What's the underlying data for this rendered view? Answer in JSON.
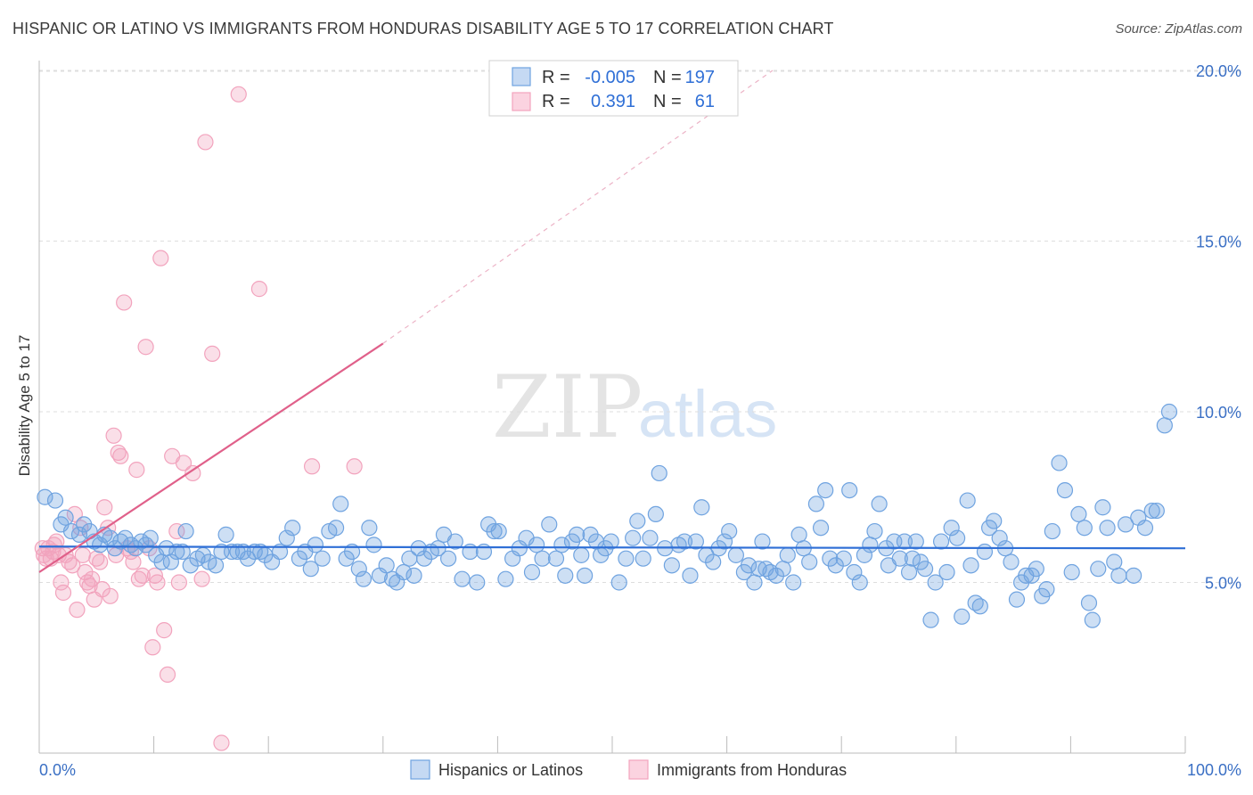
{
  "header": {
    "title": "HISPANIC OR LATINO VS IMMIGRANTS FROM HONDURAS DISABILITY AGE 5 TO 17 CORRELATION CHART",
    "source": "Source: ZipAtlas.com"
  },
  "watermark": {
    "zip": "ZIP",
    "atlas": "atlas"
  },
  "colors": {
    "blue": "#6fa3e0",
    "blue_line": "#2f6fd6",
    "pink": "#f2a3bd",
    "pink_line": "#e0608a",
    "axis_text": "#3a6fc4"
  },
  "chart_data": {
    "type": "scatter",
    "title": "HISPANIC OR LATINO VS IMMIGRANTS FROM HONDURAS DISABILITY AGE 5 TO 17 CORRELATION CHART",
    "ylabel": "Disability Age 5 to 17",
    "xlabel": "",
    "xlim": [
      0,
      100
    ],
    "ylim": [
      0,
      20.5
    ],
    "y_ticks": [
      5.0,
      10.0,
      15.0,
      20.0
    ],
    "y_tick_labels": [
      "5.0%",
      "10.0%",
      "15.0%",
      "20.0%"
    ],
    "x_tick_labels": [
      "0.0%",
      "100.0%"
    ],
    "grid": true,
    "legend_position": "top-center",
    "stats": [
      {
        "r_label": "R =",
        "r": "-0.005",
        "n_label": "N =",
        "n": "197"
      },
      {
        "r_label": "R =",
        "r": "0.391",
        "n_label": "N =",
        "n": "61"
      }
    ],
    "series": [
      {
        "name": "Hispanics or Latinos",
        "color": "#6fa3e0",
        "trend": {
          "x": [
            0,
            100
          ],
          "y": [
            6.05,
            6.0
          ]
        },
        "points": [
          [
            0.5,
            7.5
          ],
          [
            1.4,
            7.4
          ],
          [
            1.9,
            6.7
          ],
          [
            2.3,
            6.9
          ],
          [
            2.8,
            6.5
          ],
          [
            3.5,
            6.4
          ],
          [
            3.9,
            6.7
          ],
          [
            4.4,
            6.5
          ],
          [
            4.8,
            6.2
          ],
          [
            5.3,
            6.1
          ],
          [
            5.7,
            6.4
          ],
          [
            6.2,
            6.3
          ],
          [
            6.6,
            6.0
          ],
          [
            7.1,
            6.2
          ],
          [
            7.5,
            6.3
          ],
          [
            8.0,
            6.1
          ],
          [
            8.4,
            6.0
          ],
          [
            8.9,
            6.2
          ],
          [
            9.3,
            6.1
          ],
          [
            9.7,
            6.3
          ],
          [
            10.2,
            5.8
          ],
          [
            10.7,
            5.6
          ],
          [
            11.1,
            6.0
          ],
          [
            11.5,
            5.6
          ],
          [
            12.0,
            5.9
          ],
          [
            12.5,
            5.9
          ],
          [
            12.8,
            6.5
          ],
          [
            13.2,
            5.5
          ],
          [
            13.8,
            5.7
          ],
          [
            14.3,
            5.8
          ],
          [
            14.8,
            5.6
          ],
          [
            15.4,
            5.5
          ],
          [
            15.9,
            5.9
          ],
          [
            16.3,
            6.4
          ],
          [
            16.8,
            5.9
          ],
          [
            17.3,
            5.9
          ],
          [
            17.8,
            5.9
          ],
          [
            18.2,
            5.7
          ],
          [
            18.8,
            5.9
          ],
          [
            19.3,
            5.9
          ],
          [
            19.7,
            5.8
          ],
          [
            20.3,
            5.6
          ],
          [
            21.0,
            5.9
          ],
          [
            21.6,
            6.3
          ],
          [
            22.1,
            6.6
          ],
          [
            22.7,
            5.7
          ],
          [
            23.2,
            5.9
          ],
          [
            23.7,
            5.4
          ],
          [
            24.1,
            6.1
          ],
          [
            24.7,
            5.7
          ],
          [
            25.3,
            6.5
          ],
          [
            25.9,
            6.6
          ],
          [
            26.3,
            7.3
          ],
          [
            26.8,
            5.7
          ],
          [
            27.3,
            5.9
          ],
          [
            27.9,
            5.4
          ],
          [
            28.3,
            5.1
          ],
          [
            28.8,
            6.6
          ],
          [
            29.2,
            6.1
          ],
          [
            29.7,
            5.2
          ],
          [
            30.3,
            5.5
          ],
          [
            30.8,
            5.1
          ],
          [
            31.2,
            5.0
          ],
          [
            31.8,
            5.3
          ],
          [
            32.3,
            5.7
          ],
          [
            32.7,
            5.2
          ],
          [
            33.1,
            6.0
          ],
          [
            33.6,
            5.7
          ],
          [
            34.2,
            5.9
          ],
          [
            34.8,
            6.0
          ],
          [
            35.3,
            6.4
          ],
          [
            35.7,
            5.7
          ],
          [
            36.3,
            6.2
          ],
          [
            36.9,
            5.1
          ],
          [
            37.6,
            5.9
          ],
          [
            38.2,
            5.0
          ],
          [
            38.8,
            5.9
          ],
          [
            39.2,
            6.7
          ],
          [
            39.7,
            6.5
          ],
          [
            40.1,
            6.5
          ],
          [
            40.7,
            5.1
          ],
          [
            41.3,
            5.7
          ],
          [
            41.9,
            6.0
          ],
          [
            42.5,
            6.3
          ],
          [
            43.0,
            5.3
          ],
          [
            43.4,
            6.1
          ],
          [
            43.9,
            5.7
          ],
          [
            44.5,
            6.7
          ],
          [
            45.1,
            5.7
          ],
          [
            45.6,
            6.1
          ],
          [
            45.9,
            5.2
          ],
          [
            46.5,
            6.2
          ],
          [
            46.9,
            6.4
          ],
          [
            47.3,
            5.8
          ],
          [
            47.6,
            5.2
          ],
          [
            48.1,
            6.4
          ],
          [
            48.6,
            6.2
          ],
          [
            49.0,
            5.8
          ],
          [
            49.4,
            6.0
          ],
          [
            49.9,
            6.2
          ],
          [
            50.6,
            5.0
          ],
          [
            51.2,
            5.7
          ],
          [
            51.8,
            6.3
          ],
          [
            52.2,
            6.8
          ],
          [
            52.7,
            5.7
          ],
          [
            53.3,
            6.3
          ],
          [
            53.8,
            7.0
          ],
          [
            54.1,
            8.2
          ],
          [
            54.6,
            6.0
          ],
          [
            55.2,
            5.5
          ],
          [
            55.8,
            6.1
          ],
          [
            56.3,
            6.2
          ],
          [
            56.8,
            5.2
          ],
          [
            57.3,
            6.2
          ],
          [
            57.8,
            7.2
          ],
          [
            58.2,
            5.8
          ],
          [
            58.8,
            5.6
          ],
          [
            59.3,
            6.0
          ],
          [
            59.8,
            6.2
          ],
          [
            60.2,
            6.5
          ],
          [
            60.8,
            5.8
          ],
          [
            61.5,
            5.3
          ],
          [
            61.9,
            5.5
          ],
          [
            62.4,
            5.0
          ],
          [
            62.8,
            5.4
          ],
          [
            63.1,
            6.2
          ],
          [
            63.4,
            5.4
          ],
          [
            63.8,
            5.3
          ],
          [
            64.3,
            5.2
          ],
          [
            64.9,
            5.4
          ],
          [
            65.3,
            5.8
          ],
          [
            65.8,
            5.0
          ],
          [
            66.3,
            6.4
          ],
          [
            66.7,
            6.0
          ],
          [
            67.2,
            5.6
          ],
          [
            67.8,
            7.3
          ],
          [
            68.2,
            6.6
          ],
          [
            68.6,
            7.7
          ],
          [
            69.0,
            5.7
          ],
          [
            69.5,
            5.5
          ],
          [
            70.2,
            5.7
          ],
          [
            70.7,
            7.7
          ],
          [
            71.1,
            5.3
          ],
          [
            71.6,
            5.0
          ],
          [
            72.0,
            5.8
          ],
          [
            72.5,
            6.1
          ],
          [
            72.9,
            6.5
          ],
          [
            73.3,
            7.3
          ],
          [
            73.9,
            6.0
          ],
          [
            74.1,
            5.5
          ],
          [
            74.6,
            6.2
          ],
          [
            75.1,
            5.7
          ],
          [
            75.5,
            6.2
          ],
          [
            75.9,
            5.3
          ],
          [
            76.2,
            5.7
          ],
          [
            76.5,
            6.2
          ],
          [
            76.9,
            5.6
          ],
          [
            77.3,
            5.4
          ],
          [
            77.8,
            3.9
          ],
          [
            78.2,
            5.0
          ],
          [
            78.7,
            6.2
          ],
          [
            79.2,
            5.3
          ],
          [
            79.6,
            6.6
          ],
          [
            80.1,
            6.3
          ],
          [
            80.5,
            4.0
          ],
          [
            81.0,
            7.4
          ],
          [
            81.3,
            5.5
          ],
          [
            81.7,
            4.4
          ],
          [
            82.1,
            4.3
          ],
          [
            82.5,
            5.9
          ],
          [
            82.9,
            6.6
          ],
          [
            83.3,
            6.8
          ],
          [
            83.8,
            6.3
          ],
          [
            84.3,
            6.0
          ],
          [
            84.8,
            5.6
          ],
          [
            85.3,
            4.5
          ],
          [
            85.7,
            5.0
          ],
          [
            86.1,
            5.2
          ],
          [
            86.6,
            5.2
          ],
          [
            87.0,
            5.4
          ],
          [
            87.5,
            4.6
          ],
          [
            87.9,
            4.8
          ],
          [
            88.4,
            6.5
          ],
          [
            89.0,
            8.5
          ],
          [
            89.5,
            7.7
          ],
          [
            90.1,
            5.3
          ],
          [
            90.7,
            7.0
          ],
          [
            91.2,
            6.6
          ],
          [
            91.6,
            4.4
          ],
          [
            91.9,
            3.9
          ],
          [
            92.4,
            5.4
          ],
          [
            92.8,
            7.2
          ],
          [
            93.2,
            6.6
          ],
          [
            93.8,
            5.6
          ],
          [
            94.2,
            5.2
          ],
          [
            94.8,
            6.7
          ],
          [
            95.5,
            5.2
          ],
          [
            95.9,
            6.9
          ],
          [
            96.5,
            6.6
          ],
          [
            97.1,
            7.1
          ],
          [
            97.5,
            7.1
          ],
          [
            98.2,
            9.6
          ],
          [
            98.6,
            10.0
          ]
        ]
      },
      {
        "name": "Immigrants from Honduras",
        "color": "#f2a3bd",
        "trend": {
          "x": [
            0,
            30
          ],
          "y": [
            5.3,
            12.0
          ],
          "dashed_to": [
            64,
            20.0
          ]
        },
        "points": [
          [
            0.3,
            6.0
          ],
          [
            0.4,
            5.8
          ],
          [
            0.6,
            5.7
          ],
          [
            0.8,
            6.0
          ],
          [
            1.0,
            5.7
          ],
          [
            1.2,
            5.9
          ],
          [
            1.3,
            6.1
          ],
          [
            1.5,
            6.2
          ],
          [
            1.7,
            5.8
          ],
          [
            1.9,
            5.0
          ],
          [
            2.1,
            4.7
          ],
          [
            2.3,
            5.8
          ],
          [
            2.6,
            5.6
          ],
          [
            2.9,
            5.5
          ],
          [
            3.1,
            7.0
          ],
          [
            3.3,
            4.2
          ],
          [
            3.6,
            6.6
          ],
          [
            3.8,
            5.8
          ],
          [
            4.0,
            5.3
          ],
          [
            4.2,
            5.0
          ],
          [
            4.4,
            4.9
          ],
          [
            4.6,
            5.1
          ],
          [
            4.8,
            4.5
          ],
          [
            5.0,
            5.7
          ],
          [
            5.3,
            5.6
          ],
          [
            5.5,
            4.8
          ],
          [
            5.7,
            7.2
          ],
          [
            6.0,
            6.6
          ],
          [
            6.2,
            4.6
          ],
          [
            6.5,
            9.3
          ],
          [
            6.7,
            5.8
          ],
          [
            6.9,
            8.8
          ],
          [
            7.1,
            8.7
          ],
          [
            7.4,
            13.2
          ],
          [
            7.7,
            6.0
          ],
          [
            8.0,
            5.9
          ],
          [
            8.2,
            5.6
          ],
          [
            8.5,
            8.3
          ],
          [
            8.7,
            5.1
          ],
          [
            9.0,
            5.2
          ],
          [
            9.3,
            11.9
          ],
          [
            9.6,
            6.0
          ],
          [
            9.9,
            3.1
          ],
          [
            10.1,
            5.2
          ],
          [
            10.3,
            5.0
          ],
          [
            10.6,
            14.5
          ],
          [
            10.9,
            3.6
          ],
          [
            11.2,
            2.3
          ],
          [
            11.6,
            8.7
          ],
          [
            12.0,
            6.5
          ],
          [
            12.2,
            5.0
          ],
          [
            12.6,
            8.5
          ],
          [
            13.4,
            8.2
          ],
          [
            14.2,
            5.1
          ],
          [
            14.5,
            17.9
          ],
          [
            15.1,
            11.7
          ],
          [
            15.9,
            0.3
          ],
          [
            17.4,
            19.3
          ],
          [
            19.2,
            13.6
          ],
          [
            23.8,
            8.4
          ],
          [
            27.5,
            8.4
          ]
        ]
      }
    ]
  },
  "legend": {
    "series1": "Hispanics or Latinos",
    "series2": "Immigrants from Honduras"
  }
}
